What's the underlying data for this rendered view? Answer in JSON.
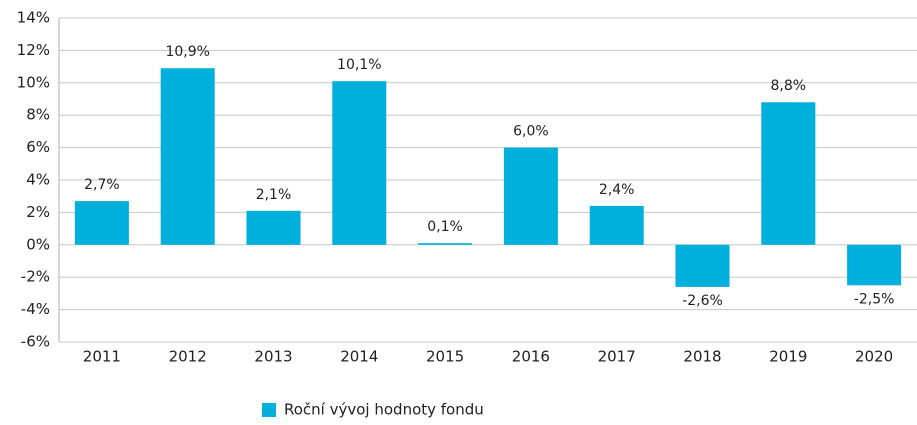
{
  "chart_data": {
    "type": "bar",
    "categories": [
      "2011",
      "2012",
      "2013",
      "2014",
      "2015",
      "2016",
      "2017",
      "2018",
      "2019",
      "2020"
    ],
    "series": [
      {
        "name": "Roční vývoj hodnoty fondu",
        "color": "#00b0dc",
        "values": [
          2.7,
          10.9,
          2.1,
          10.1,
          0.1,
          6.0,
          2.4,
          -2.6,
          8.8,
          -2.5
        ],
        "value_labels": [
          "2,7%",
          "10,9%",
          "2,1%",
          "10,1%",
          "0,1%",
          "6,0%",
          "2,4%",
          "-2,6%",
          "8,8%",
          "-2,5%"
        ]
      }
    ],
    "ylim": [
      -6,
      14
    ],
    "yticks": [
      {
        "value": -6,
        "label": "-6%"
      },
      {
        "value": -4,
        "label": "-4%"
      },
      {
        "value": -2,
        "label": "-2%"
      },
      {
        "value": 0,
        "label": "0%"
      },
      {
        "value": 2,
        "label": "2%"
      },
      {
        "value": 4,
        "label": "4%"
      },
      {
        "value": 6,
        "label": "6%"
      },
      {
        "value": 8,
        "label": "8%"
      },
      {
        "value": 10,
        "label": "10%"
      },
      {
        "value": 12,
        "label": "12%"
      },
      {
        "value": 14,
        "label": "14%"
      }
    ],
    "grid": true,
    "legend": "bottom"
  }
}
